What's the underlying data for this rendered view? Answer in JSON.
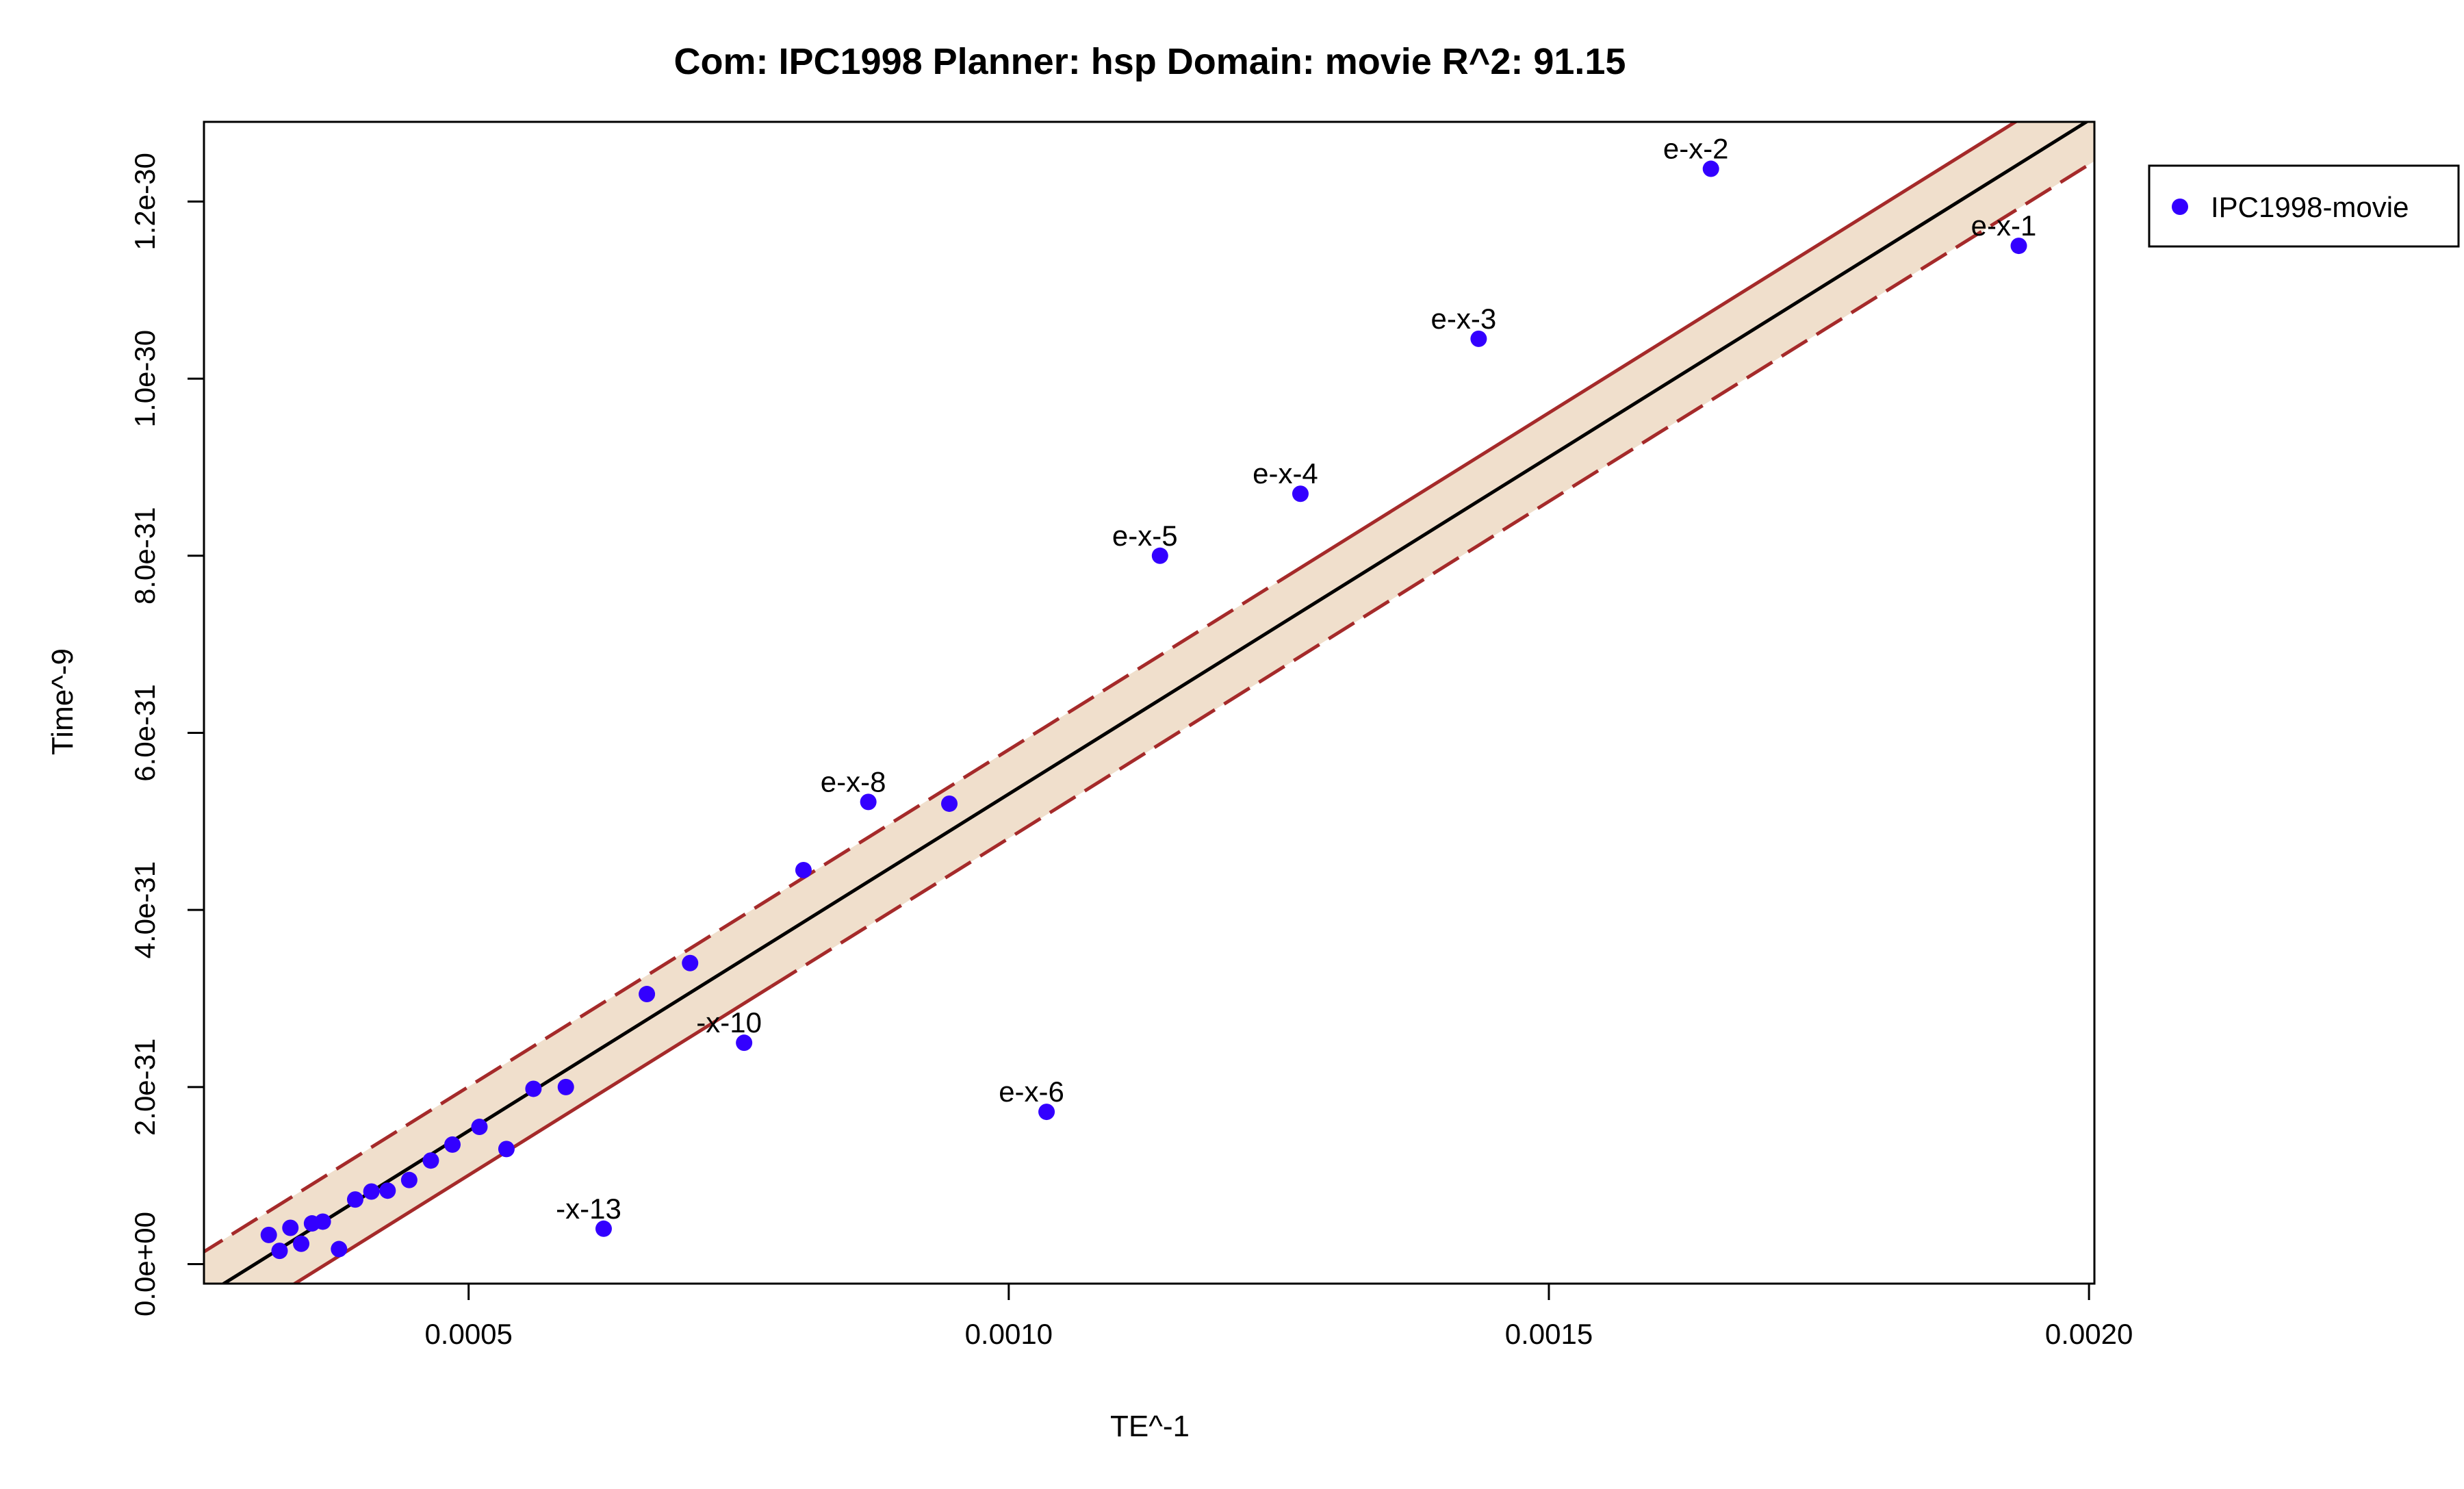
{
  "chart_data": {
    "type": "scatter",
    "title": "Com: IPC1998 Planner: hsp Domain: movie R^2: 91.15",
    "xlabel": "TE^-1",
    "ylabel": "Time^-9",
    "xlim": [
      0.000255,
      0.002005
    ],
    "ylim": [
      -2.2e-32,
      1.29e-30
    ],
    "x_ticks": [
      {
        "value": 0.0005,
        "label": "0.0005"
      },
      {
        "value": 0.001,
        "label": "0.0010"
      },
      {
        "value": 0.0015,
        "label": "0.0015"
      },
      {
        "value": 0.002,
        "label": "0.0020"
      }
    ],
    "y_ticks": [
      {
        "value": 0,
        "label": "0.0e+00"
      },
      {
        "value": 2e-31,
        "label": "2.0e-31"
      },
      {
        "value": 4e-31,
        "label": "4.0e-31"
      },
      {
        "value": 6e-31,
        "label": "6.0e-31"
      },
      {
        "value": 8e-31,
        "label": "8.0e-31"
      },
      {
        "value": 1e-30,
        "label": "1.0e-30"
      },
      {
        "value": 1.2e-30,
        "label": "1.2e-30"
      }
    ],
    "grid": false,
    "legend": {
      "position": "right",
      "entries": [
        {
          "name": "IPC1998-movie",
          "color": "#3300ff"
        }
      ]
    },
    "fit_line": {
      "slope": 7.609e-28,
      "intercept": -2.3e-31,
      "color": "#000000"
    },
    "band": {
      "half_width": 5e-32,
      "fill_color": "#f0dfcc",
      "line_color": "#a52a2a"
    },
    "point_color": "#3300ff",
    "series": [
      {
        "name": "IPC1998-movie",
        "points": [
          {
            "x": 0.001935,
            "y": 1.15e-30,
            "label": "e-x-1"
          },
          {
            "x": 0.00165,
            "y": 1.237e-30,
            "label": "e-x-2"
          },
          {
            "x": 0.001435,
            "y": 1.045e-30,
            "label": "e-x-3"
          },
          {
            "x": 0.00127,
            "y": 8.7e-31,
            "label": "e-x-4"
          },
          {
            "x": 0.00114,
            "y": 8e-31,
            "label": "e-x-5"
          },
          {
            "x": 0.001035,
            "y": 1.72e-31,
            "label": "e-x-6"
          },
          {
            "x": 0.00087,
            "y": 5.22e-31,
            "label": "e-x-8"
          },
          {
            "x": 0.000945,
            "y": 5.2e-31,
            "label": ""
          },
          {
            "x": 0.00081,
            "y": 4.45e-31,
            "label": ""
          },
          {
            "x": 0.000755,
            "y": 2.5e-31,
            "label": "-x-10"
          },
          {
            "x": 0.000705,
            "y": 3.4e-31,
            "label": ""
          },
          {
            "x": 0.000665,
            "y": 3.05e-31,
            "label": ""
          },
          {
            "x": 0.000625,
            "y": 4e-32,
            "label": "-x-13"
          },
          {
            "x": 0.00059,
            "y": 2e-31,
            "label": ""
          },
          {
            "x": 0.00056,
            "y": 1.98e-31,
            "label": ""
          },
          {
            "x": 0.000535,
            "y": 1.3e-31,
            "label": ""
          },
          {
            "x": 0.00051,
            "y": 1.55e-31,
            "label": ""
          },
          {
            "x": 0.000485,
            "y": 1.35e-31,
            "label": ""
          },
          {
            "x": 0.000465,
            "y": 1.17e-31,
            "label": ""
          },
          {
            "x": 0.000445,
            "y": 9.5e-32,
            "label": ""
          },
          {
            "x": 0.000425,
            "y": 8.3e-32,
            "label": ""
          },
          {
            "x": 0.00041,
            "y": 8.2e-32,
            "label": ""
          },
          {
            "x": 0.000395,
            "y": 7.3e-32,
            "label": ""
          },
          {
            "x": 0.00038,
            "y": 1.7e-32,
            "label": ""
          },
          {
            "x": 0.000365,
            "y": 4.8e-32,
            "label": ""
          },
          {
            "x": 0.000355,
            "y": 4.6e-32,
            "label": ""
          },
          {
            "x": 0.000345,
            "y": 2.3e-32,
            "label": ""
          },
          {
            "x": 0.000335,
            "y": 4.1e-32,
            "label": ""
          },
          {
            "x": 0.000325,
            "y": 1.5e-32,
            "label": ""
          },
          {
            "x": 0.000315,
            "y": 3.3e-32,
            "label": ""
          }
        ]
      }
    ]
  }
}
